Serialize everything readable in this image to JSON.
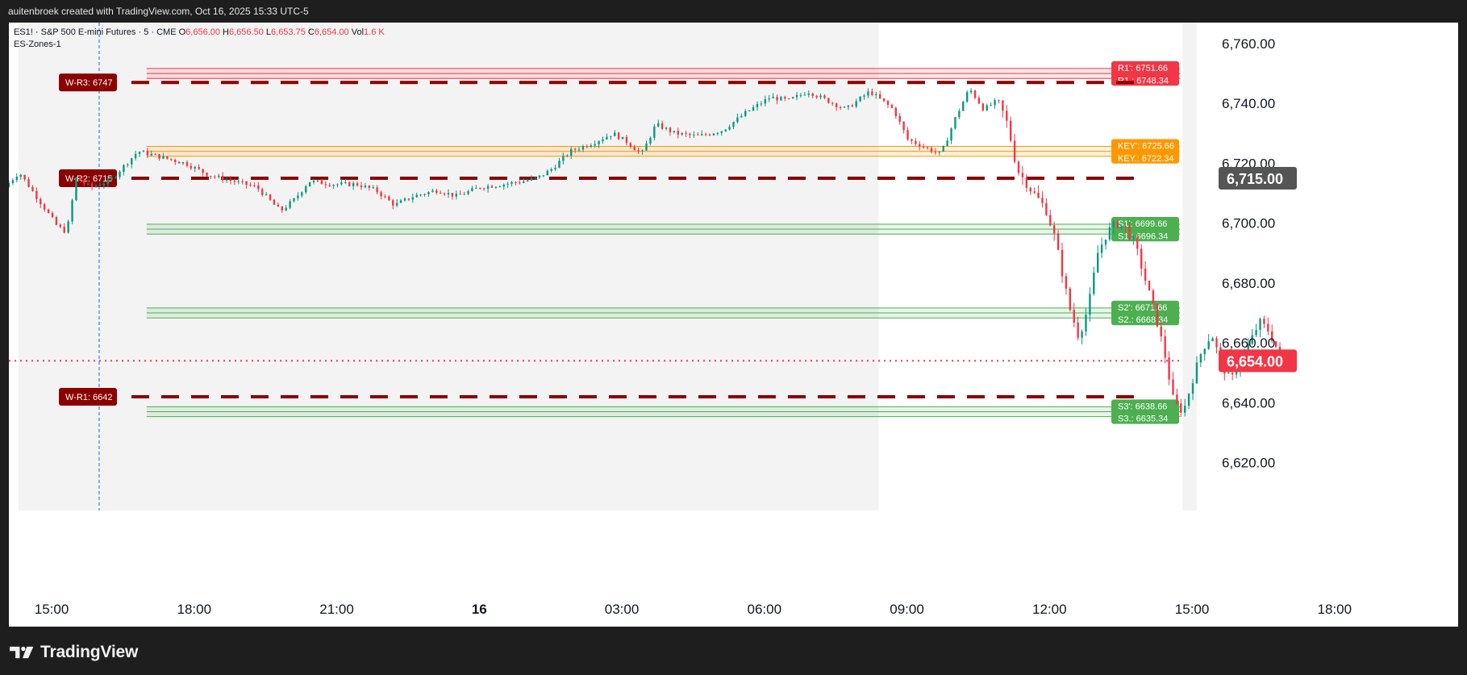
{
  "header": {
    "attribution": "auitenbroek created with TradingView.com, Oct 16, 2025 15:33 UTC-5"
  },
  "legend": {
    "symbol": "ES1! · S&P 500 E-mini Futures · 5 · CME",
    "open_label": "O",
    "open_value": "6,656.00",
    "high_label": "H",
    "high_value": "6,656.50",
    "low_label": "L",
    "low_value": "6,653.75",
    "close_label": "C",
    "close_value": "6,654.00",
    "vol_label": "Vol",
    "vol_value": "1.6 K",
    "indicator_name": "ES-Zones-1"
  },
  "footer": {
    "brand": "TradingView"
  },
  "colors": {
    "up": "#089981",
    "down": "#f23645",
    "resistance": "#f23645",
    "key": "#ff9800",
    "support": "#4caf50",
    "weekly": "#8b0000",
    "session_shade": "#f3f3f3",
    "axis_text": "#131722"
  },
  "chart_data": {
    "type": "candlestick",
    "timeframe": "5",
    "y_axis": {
      "side": "right",
      "range": [
        6604,
        6767
      ],
      "ticks": [
        "6,620.00",
        "6,640.00",
        "6,660.00",
        "6,680.00",
        "6,700.00",
        "6,720.00",
        "6,740.00",
        "6,760.00"
      ],
      "tick_values": [
        6620,
        6640,
        6660,
        6680,
        6700,
        6720,
        6740,
        6760
      ]
    },
    "x_axis": {
      "ticks": [
        {
          "label": "15:00",
          "hour": 15,
          "bold": false
        },
        {
          "label": "18:00",
          "hour": 18,
          "bold": false
        },
        {
          "label": "21:00",
          "hour": 21,
          "bold": false
        },
        {
          "label": "16",
          "hour": 24,
          "bold": true
        },
        {
          "label": "03:00",
          "hour": 27,
          "bold": false
        },
        {
          "label": "06:00",
          "hour": 30,
          "bold": false
        },
        {
          "label": "09:00",
          "hour": 33,
          "bold": false
        },
        {
          "label": "12:00",
          "hour": 36,
          "bold": false
        },
        {
          "label": "15:00",
          "hour": 39,
          "bold": false
        },
        {
          "label": "18:00",
          "hour": 42,
          "bold": false
        }
      ],
      "range_hours": [
        14.1,
        44.6
      ]
    },
    "price_labels": [
      {
        "value": 6715.0,
        "text": "6,715.00",
        "color": "#555555"
      },
      {
        "value": 6654.0,
        "text": "6,654.00",
        "color": "#f23645"
      }
    ],
    "current_price_line": 6654.0,
    "session_shading_hours": [
      [
        14.3,
        16.5
      ],
      [
        16.5,
        32.4
      ],
      [
        38.8,
        39.1
      ]
    ],
    "vertical_marker_hour": 16.0,
    "weekly_levels": [
      {
        "label": "W-R3: 6747",
        "value": 6747,
        "start_hour": 16.0
      },
      {
        "label": "W-R2: 6715",
        "value": 6715,
        "start_hour": 16.0
      },
      {
        "label": "W-R1: 6642",
        "value": 6642,
        "start_hour": 16.0
      }
    ],
    "zones": [
      {
        "name": "R1",
        "top": 6751.66,
        "bottom": 6748.34,
        "top_label": "R1': 6751.66",
        "bottom_label": "R1.: 6748.34",
        "color": "#f23645",
        "start_hour": 17.0
      },
      {
        "name": "KEY",
        "top": 6725.66,
        "bottom": 6722.34,
        "top_label": "KEY': 6725.66",
        "bottom_label": "KEY.: 6722.34",
        "color": "#ff9800",
        "start_hour": 17.0
      },
      {
        "name": "S1",
        "top": 6699.66,
        "bottom": 6696.34,
        "top_label": "S1': 6699.66",
        "bottom_label": "S1.: 6696.34",
        "color": "#4caf50",
        "start_hour": 17.0
      },
      {
        "name": "S2",
        "top": 6671.66,
        "bottom": 6668.34,
        "top_label": "S2': 6671.66",
        "bottom_label": "S2.: 6668.34",
        "color": "#4caf50",
        "start_hour": 17.0
      },
      {
        "name": "S3",
        "top": 6638.66,
        "bottom": 6635.34,
        "top_label": "S3': 6638.66",
        "bottom_label": "S3.: 6635.34",
        "color": "#4caf50",
        "start_hour": 17.0
      }
    ],
    "price_path": [
      [
        14.1,
        6712
      ],
      [
        14.4,
        6717
      ],
      [
        14.8,
        6708
      ],
      [
        15.2,
        6699
      ],
      [
        15.4,
        6697
      ],
      [
        15.6,
        6715
      ],
      [
        15.9,
        6712
      ],
      [
        16.3,
        6714
      ],
      [
        16.6,
        6719
      ],
      [
        16.9,
        6724
      ],
      [
        17.4,
        6722
      ],
      [
        17.9,
        6720
      ],
      [
        18.4,
        6716
      ],
      [
        18.9,
        6714
      ],
      [
        19.4,
        6712
      ],
      [
        19.9,
        6704
      ],
      [
        20.2,
        6708
      ],
      [
        20.5,
        6714
      ],
      [
        21.0,
        6713
      ],
      [
        21.5,
        6713
      ],
      [
        21.9,
        6711
      ],
      [
        22.3,
        6706
      ],
      [
        22.7,
        6709
      ],
      [
        23.2,
        6711
      ],
      [
        23.6,
        6709
      ],
      [
        24.1,
        6712
      ],
      [
        24.6,
        6713
      ],
      [
        25.0,
        6714
      ],
      [
        25.3,
        6715
      ],
      [
        25.6,
        6718
      ],
      [
        26.0,
        6724
      ],
      [
        26.5,
        6727
      ],
      [
        26.9,
        6730
      ],
      [
        27.2,
        6727
      ],
      [
        27.5,
        6723
      ],
      [
        27.8,
        6733
      ],
      [
        28.2,
        6730
      ],
      [
        28.7,
        6729
      ],
      [
        29.2,
        6731
      ],
      [
        29.7,
        6737
      ],
      [
        30.2,
        6742
      ],
      [
        30.6,
        6741
      ],
      [
        31.0,
        6744
      ],
      [
        31.4,
        6741
      ],
      [
        31.8,
        6738
      ],
      [
        32.3,
        6744
      ],
      [
        32.8,
        6738
      ],
      [
        33.1,
        6728
      ],
      [
        33.5,
        6725
      ],
      [
        33.8,
        6723
      ],
      [
        34.1,
        6735
      ],
      [
        34.4,
        6745
      ],
      [
        34.7,
        6738
      ],
      [
        35.0,
        6741
      ],
      [
        35.2,
        6733
      ],
      [
        35.4,
        6718
      ],
      [
        35.7,
        6711
      ],
      [
        36.0,
        6705
      ],
      [
        36.2,
        6695
      ],
      [
        36.5,
        6672
      ],
      [
        36.7,
        6662
      ],
      [
        36.9,
        6672
      ],
      [
        37.1,
        6690
      ],
      [
        37.3,
        6697
      ],
      [
        37.5,
        6700
      ],
      [
        37.7,
        6698
      ],
      [
        37.9,
        6692
      ],
      [
        38.1,
        6681
      ],
      [
        38.3,
        6670
      ],
      [
        38.5,
        6657
      ],
      [
        38.7,
        6640
      ],
      [
        38.9,
        6637
      ],
      [
        39.1,
        6648
      ],
      [
        39.3,
        6658
      ],
      [
        39.5,
        6663
      ],
      [
        39.7,
        6653
      ],
      [
        39.9,
        6647
      ],
      [
        40.1,
        6655
      ],
      [
        40.3,
        6660
      ],
      [
        40.5,
        6667
      ],
      [
        40.7,
        6664
      ],
      [
        40.9,
        6657
      ],
      [
        41.0,
        6654
      ]
    ]
  }
}
